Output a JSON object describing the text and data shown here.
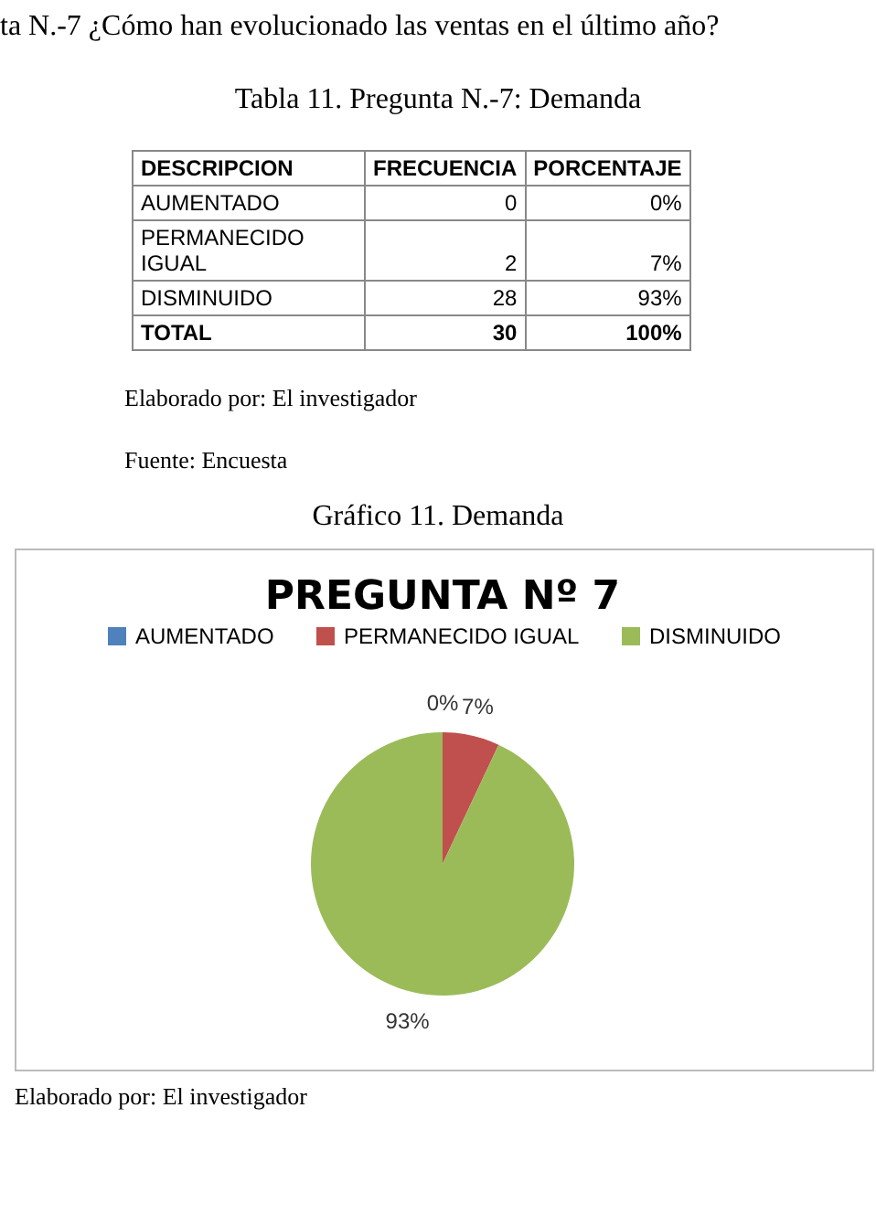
{
  "chart_data": [
    {
      "type": "other",
      "title": "ta N.-7 ¿Cómo han evolucionado las ventas en el último año?",
      "subtitle": "Tabla 11. Pregunta N.-7: Demanda",
      "xlabel": "DESCRIPCION",
      "data_labels": true,
      "categories": [
        "AUMENTADO",
        "PERMANECIDO IGUAL",
        "DISMINUIDO",
        "TOTAL"
      ],
      "series": [
        {
          "name": "FRECUENCIA",
          "values": [
            0,
            2,
            28,
            30
          ]
        },
        {
          "name": "PORCENTAJE",
          "values": [
            0,
            7,
            93,
            100
          ],
          "value_labels": [
            "0%",
            "7%",
            "93%",
            "100%"
          ]
        }
      ],
      "annotations": [
        "Elaborado por: El investigador",
        "Fuente: Encuesta"
      ]
    },
    {
      "type": "pie",
      "title": "PREGUNTA Nº 7",
      "subtitle": "Gráfico 11. Demanda",
      "categories": [
        "AUMENTADO",
        "PERMANECIDO IGUAL",
        "DISMINUIDO"
      ],
      "values": [
        0,
        7,
        93
      ],
      "colors": [
        "#4f81bd",
        "#c0504d",
        "#9bbb59"
      ],
      "value_labels": [
        "0%",
        "7%",
        "93%"
      ],
      "legend": "top",
      "annotations": [
        "Elaborado por: El investigador"
      ]
    }
  ]
}
